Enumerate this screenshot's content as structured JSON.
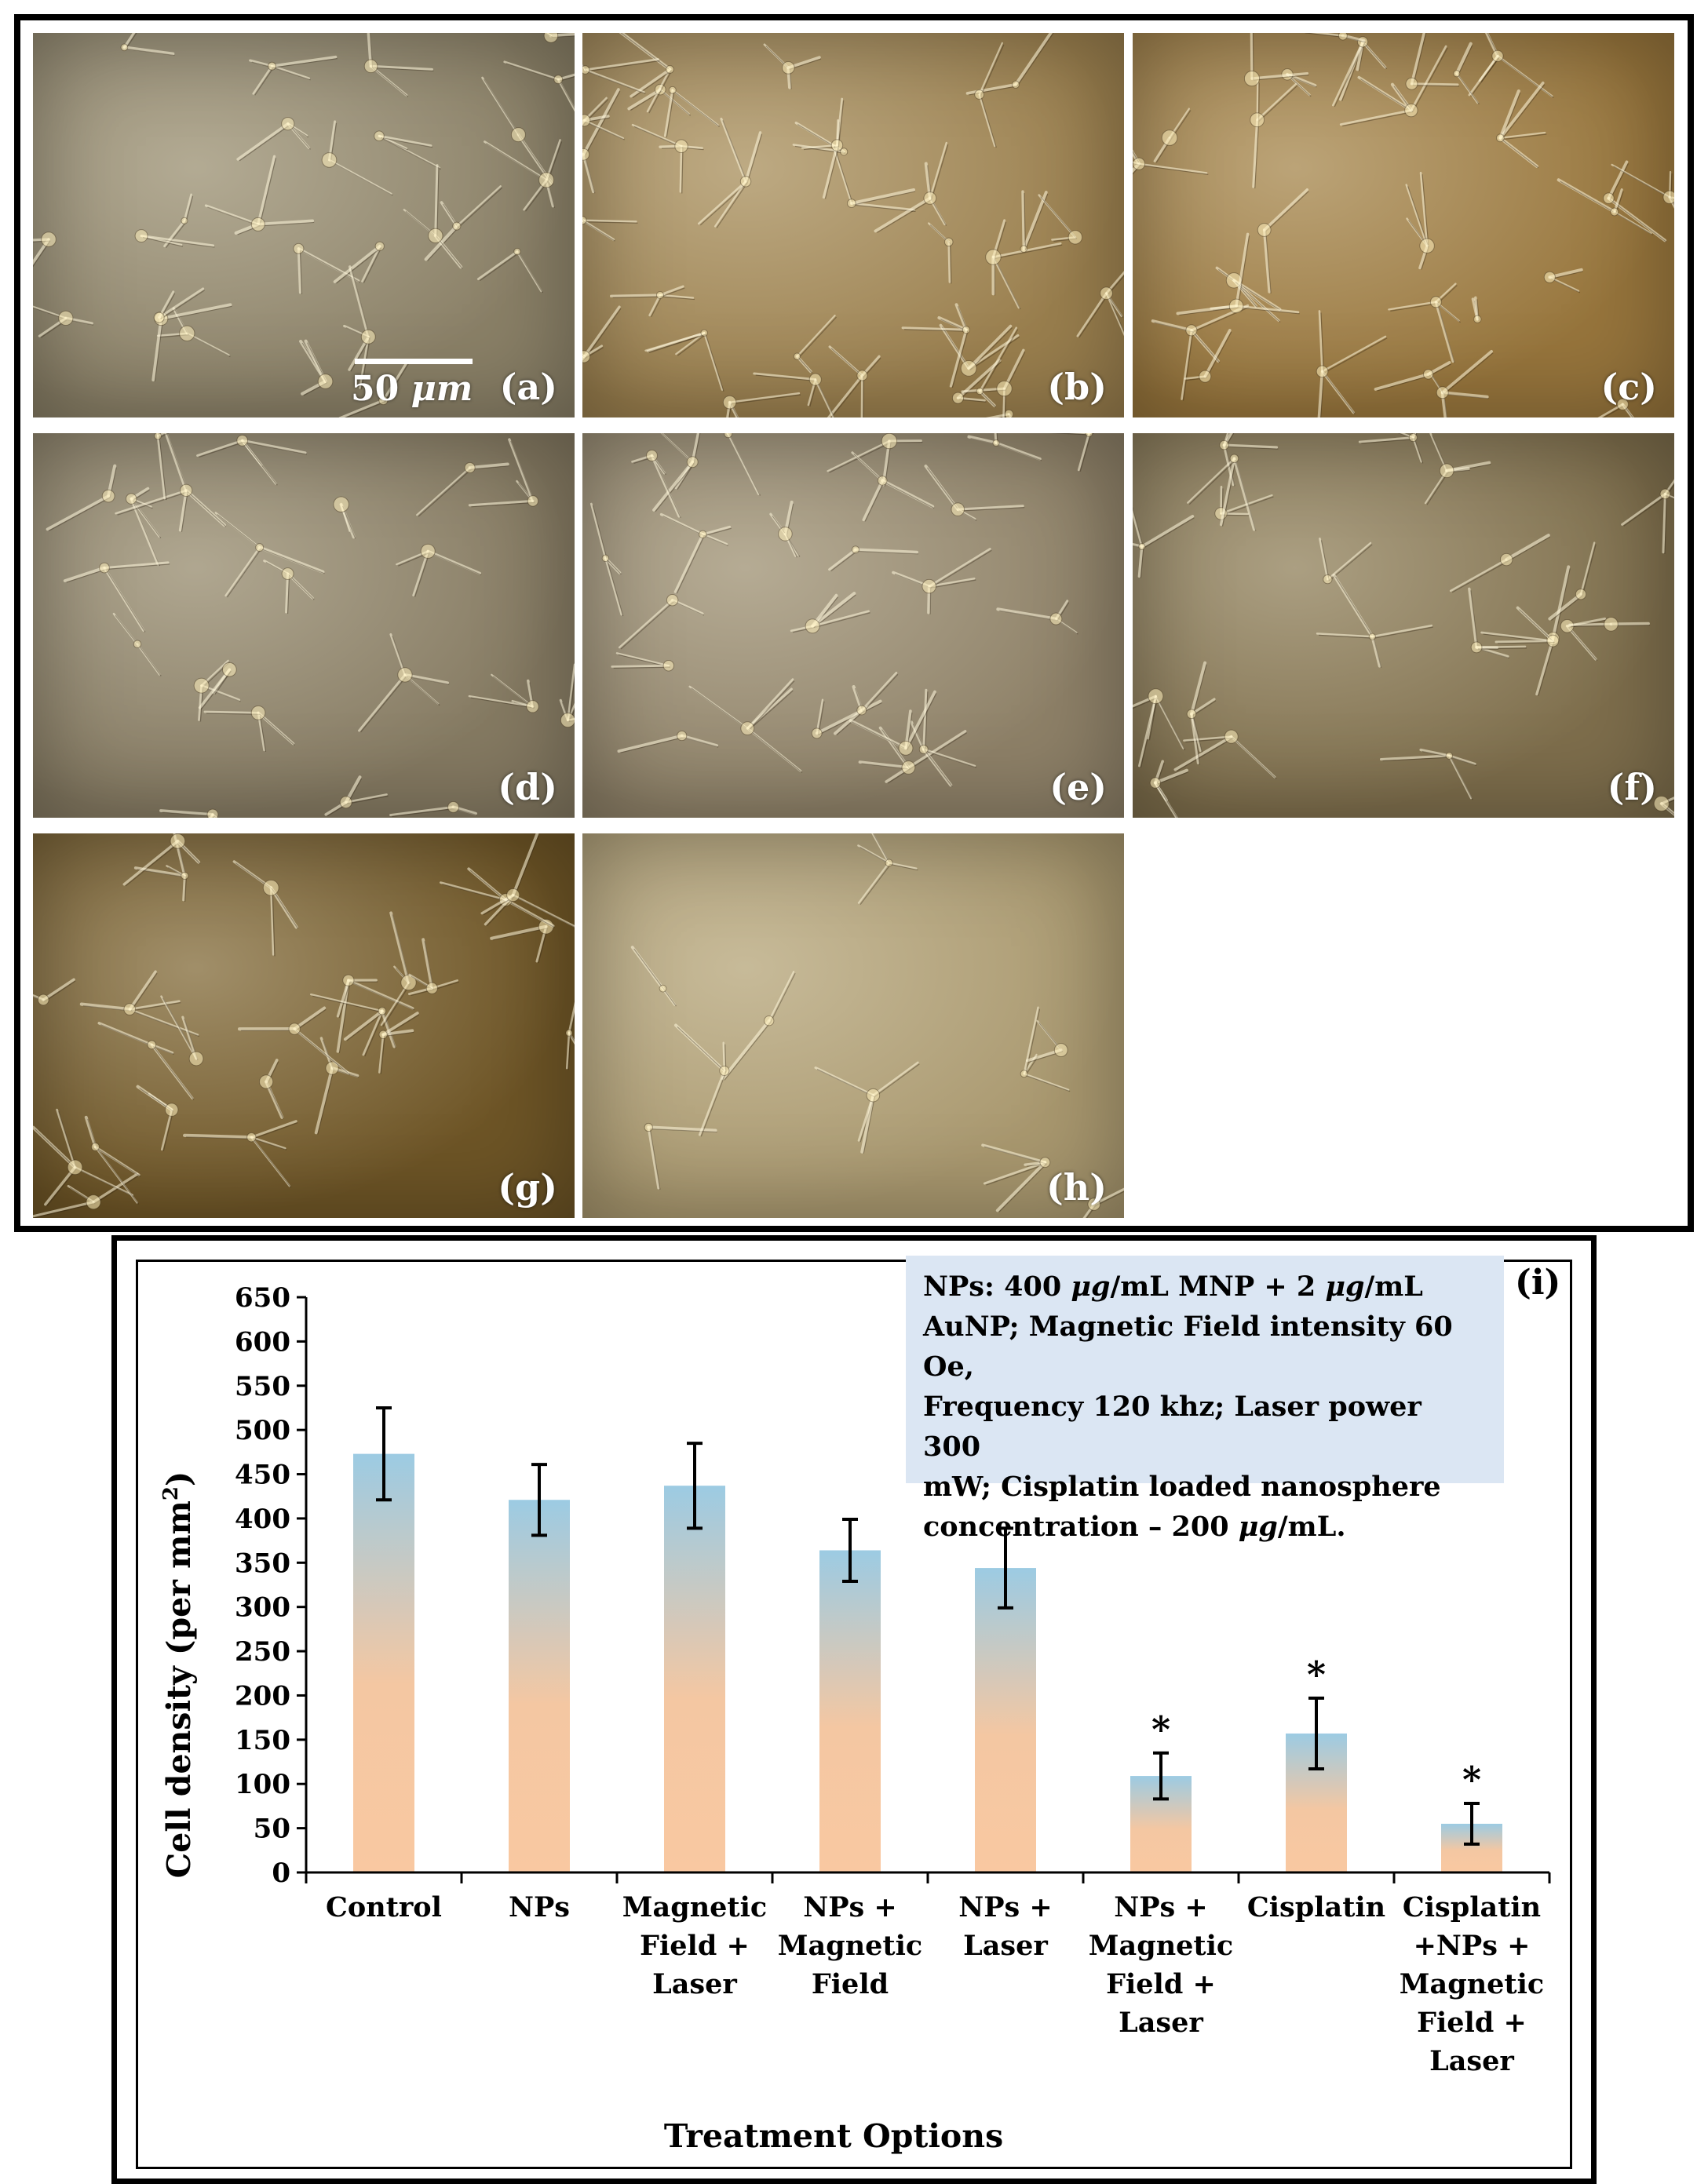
{
  "panels": [
    {
      "label": "(a)",
      "tone": "#8a8067",
      "density": 26
    },
    {
      "label": "(b)",
      "tone": "#9a7f4e",
      "density": 34
    },
    {
      "label": "(c)",
      "tone": "#97753c",
      "density": 28
    },
    {
      "label": "(d)",
      "tone": "#857a62",
      "density": 22
    },
    {
      "label": "(e)",
      "tone": "#8e8168",
      "density": 24
    },
    {
      "label": "(f)",
      "tone": "#7e6e4c",
      "density": 22
    },
    {
      "label": "(g)",
      "tone": "#6e5526",
      "density": 24
    },
    {
      "label": "(h)",
      "tone": "#a9986f",
      "density": 10
    }
  ],
  "scale_bar": {
    "value": "50",
    "unit": "μm"
  },
  "info_note": {
    "line1a": "NPs: 400 ",
    "line1b": "μg",
    "line1c": "/mL MNP + 2 ",
    "line1d": "μg",
    "line1e": "/mL",
    "line2": "AuNP; Magnetic Field intensity 60 Oe,",
    "line3": "Frequency 120 khz; Laser power 300",
    "line4": "mW; Cisplatin loaded nanosphere",
    "line5a": "concentration – 200 ",
    "line5b": "μg",
    "line5c": "/mL."
  },
  "chart_data": {
    "type": "bar",
    "panel_label": "(i)",
    "xlabel": "Treatment Options",
    "ylabel": "Cell density (per mm²)",
    "ylim": [
      0,
      650
    ],
    "yticks": [
      0,
      50,
      100,
      150,
      200,
      250,
      300,
      350,
      400,
      450,
      500,
      550,
      600,
      650
    ],
    "grid": false,
    "categories": [
      [
        "Control"
      ],
      [
        "NPs"
      ],
      [
        "Magnetic",
        "Field +",
        "Laser"
      ],
      [
        "NPs +",
        "Magnetic",
        "Field"
      ],
      [
        "NPs +",
        "Laser"
      ],
      [
        "NPs +",
        "Magnetic",
        "Field +",
        "Laser"
      ],
      [
        "Cisplatin"
      ],
      [
        "Cisplatin",
        "+NPs +",
        "Magnetic",
        "Field +",
        "Laser"
      ]
    ],
    "values": [
      473,
      421,
      437,
      364,
      344,
      109,
      157,
      55
    ],
    "errors": [
      52,
      40,
      48,
      35,
      45,
      26,
      40,
      23
    ],
    "significance": [
      "",
      "",
      "",
      "",
      "",
      "*",
      "*",
      "*"
    ],
    "bar_gradient": {
      "top": "#9ccbe3",
      "bottom": "#f9c8a1"
    }
  }
}
